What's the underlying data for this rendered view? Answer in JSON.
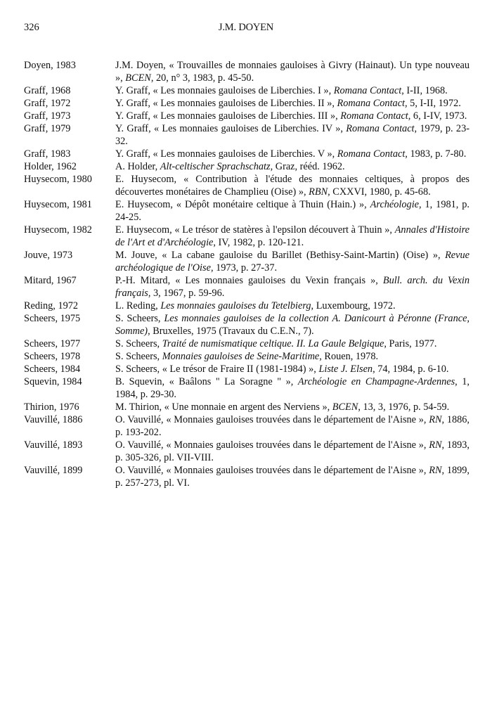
{
  "header": {
    "page_number": "326",
    "running_title": "J.M. DOYEN"
  },
  "entries": [
    {
      "key": "Doyen, 1983",
      "ref": [
        {
          "t": "J.M. Doyen, « Trouvailles de monnaies gauloises à Givry (Hainaut). Un type nouveau », "
        },
        {
          "t": "BCEN",
          "i": true
        },
        {
          "t": ", 20, n° 3, 1983, p. 45-50."
        }
      ]
    },
    {
      "key": "Graff, 1968",
      "ref": [
        {
          "t": "Y. Graff, « Les monnaies gauloises de Liberchies. I », "
        },
        {
          "t": "Romana Contact",
          "i": true
        },
        {
          "t": ", I-II, 1968."
        }
      ]
    },
    {
      "key": "Graff, 1972",
      "ref": [
        {
          "t": "Y. Graff, « Les monnaies gauloises de Liberchies. II », "
        },
        {
          "t": "Romana Contact",
          "i": true
        },
        {
          "t": ", 5, I-II, 1972."
        }
      ]
    },
    {
      "key": "Graff, 1973",
      "ref": [
        {
          "t": "Y. Graff, « Les monnaies gauloises de Liberchies. III », "
        },
        {
          "t": "Romana Contact",
          "i": true
        },
        {
          "t": ", 6, I-IV, 1973."
        }
      ]
    },
    {
      "key": "Graff, 1979",
      "ref": [
        {
          "t": "Y. Graff, « Les monnaies gauloises de Liberchies. IV », "
        },
        {
          "t": "Romana Contact",
          "i": true
        },
        {
          "t": ", 1979, p. 23-32."
        }
      ]
    },
    {
      "key": "Graff, 1983",
      "ref": [
        {
          "t": "Y. Graff, « Les monnaies gauloises de Liberchies. V », "
        },
        {
          "t": "Romana Contact",
          "i": true
        },
        {
          "t": ", 1983, p. 7-80."
        }
      ]
    },
    {
      "key": "Holder, 1962",
      "ref": [
        {
          "t": "A. Holder, "
        },
        {
          "t": "Alt-celtischer Sprachschatz",
          "i": true
        },
        {
          "t": ", Graz, rééd. 1962."
        }
      ]
    },
    {
      "key": "Huysecom, 1980",
      "ref": [
        {
          "t": "E. Huysecom, « Contribution à l'étude des monnaies celtiques, à propos des découvertes monétaires de Champlieu (Oise) », "
        },
        {
          "t": "RBN",
          "i": true
        },
        {
          "t": ", CXXVI, 1980, p. 45-68."
        }
      ]
    },
    {
      "key": "Huysecom, 1981",
      "ref": [
        {
          "t": "E. Huysecom, « Dépôt monétaire celtique à Thuin (Hain.) », "
        },
        {
          "t": "Archéologie",
          "i": true
        },
        {
          "t": ", 1, 1981, p. 24-25."
        }
      ]
    },
    {
      "key": "Huysecom, 1982",
      "ref": [
        {
          "t": "E. Huysecom, « Le trésor de statères à l'epsilon découvert à Thuin », "
        },
        {
          "t": "Annales d'Histoire de l'Art et d'Archéologie",
          "i": true
        },
        {
          "t": ", IV, 1982, p. 120-121."
        }
      ]
    },
    {
      "key": "Jouve, 1973",
      "ref": [
        {
          "t": "M. Jouve, « La cabane gauloise du Barillet (Bethisy-Saint-Martin) (Oise) », "
        },
        {
          "t": "Revue archéologique de l'Oise",
          "i": true
        },
        {
          "t": ", 1973, p. 27-37."
        }
      ]
    },
    {
      "key": "Mitard, 1967",
      "ref": [
        {
          "t": "P.-H. Mitard, « Les monnaies gauloises du Vexin français », "
        },
        {
          "t": "Bull. arch. du Vexin français",
          "i": true
        },
        {
          "t": ", 3, 1967, p. 59-96."
        }
      ]
    },
    {
      "key": "Reding, 1972",
      "ref": [
        {
          "t": "L. Reding, "
        },
        {
          "t": "Les monnaies gauloises du Tetelbierg",
          "i": true
        },
        {
          "t": ", Luxembourg, 1972."
        }
      ]
    },
    {
      "key": "Scheers, 1975",
      "ref": [
        {
          "t": "S. Scheers, "
        },
        {
          "t": "Les monnaies gauloises de la collection A. Danicourt à Péronne (France, Somme)",
          "i": true
        },
        {
          "t": ", Bruxelles, 1975 (Travaux du C.E.N., 7)."
        }
      ]
    },
    {
      "key": "Scheers, 1977",
      "ref": [
        {
          "t": "S. Scheers, "
        },
        {
          "t": "Traité de numismatique celtique. II. La Gaule Belgique",
          "i": true
        },
        {
          "t": ", Paris, 1977."
        }
      ]
    },
    {
      "key": "Scheers, 1978",
      "ref": [
        {
          "t": "S. Scheers, "
        },
        {
          "t": "Monnaies gauloises de Seine-Maritime",
          "i": true
        },
        {
          "t": ", Rouen, 1978."
        }
      ]
    },
    {
      "key": "Scheers, 1984",
      "ref": [
        {
          "t": "S. Scheers, « Le trésor de Fraire II (1981-1984) », "
        },
        {
          "t": "Liste J. Elsen",
          "i": true
        },
        {
          "t": ", 74, 1984, p. 6-10."
        }
      ]
    },
    {
      "key": "Squevin, 1984",
      "ref": [
        {
          "t": "B. Squevin, « Baâlons \" La Soragne \" », "
        },
        {
          "t": "Archéologie en Champagne-Ardennes",
          "i": true
        },
        {
          "t": ", 1, 1984, p. 29-30."
        }
      ]
    },
    {
      "key": "Thirion, 1976",
      "ref": [
        {
          "t": "M. Thirion, « Une monnaie en argent des Nerviens », "
        },
        {
          "t": "BCEN",
          "i": true
        },
        {
          "t": ", 13, 3, 1976, p. 54-59."
        }
      ]
    },
    {
      "key": "Vauvillé, 1886",
      "ref": [
        {
          "t": "O. Vauvillé, « Monnaies gauloises trouvées dans le département de l'Aisne », "
        },
        {
          "t": "RN",
          "i": true
        },
        {
          "t": ", 1886, p. 193-202."
        }
      ]
    },
    {
      "key": "Vauvillé, 1893",
      "ref": [
        {
          "t": "O. Vauvillé, « Monnaies gauloises trouvées dans le département de l'Aisne », "
        },
        {
          "t": "RN",
          "i": true
        },
        {
          "t": ", 1893, p. 305-326, pl. VII-VIII."
        }
      ]
    },
    {
      "key": "Vauvillé, 1899",
      "ref": [
        {
          "t": "O. Vauvillé, « Monnaies gauloises trouvées dans le département de l'Aisne », "
        },
        {
          "t": "RN",
          "i": true
        },
        {
          "t": ", 1899, p. 257-273, pl. VI."
        }
      ]
    }
  ]
}
